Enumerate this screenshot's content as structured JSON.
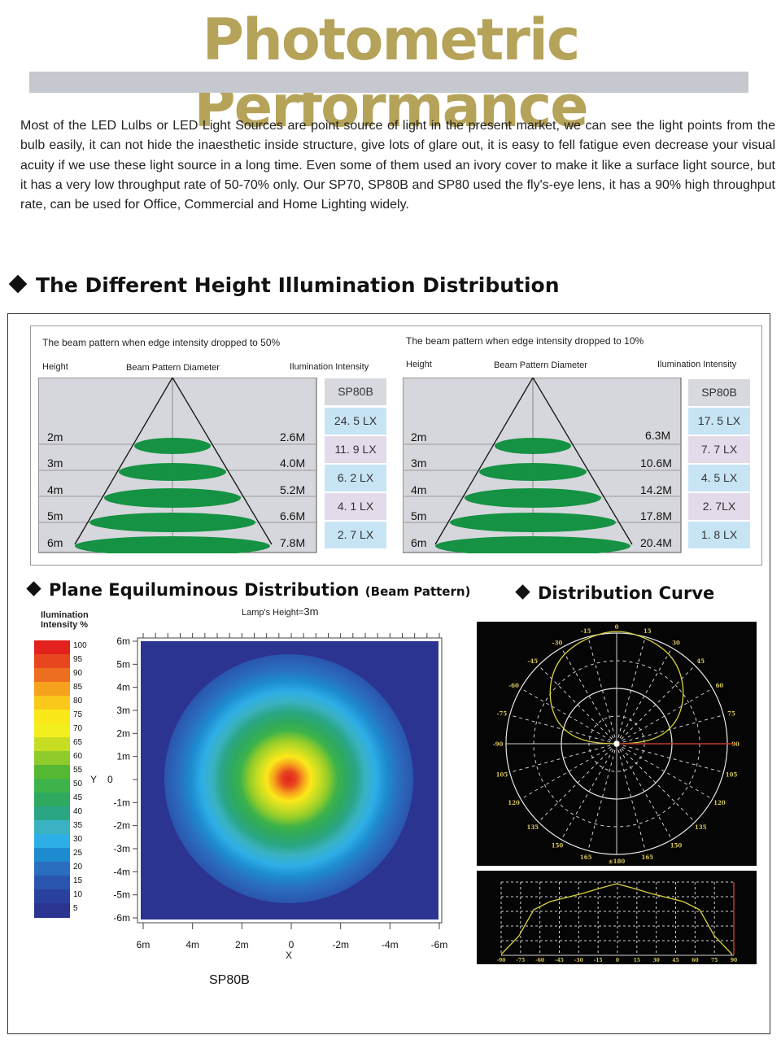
{
  "header": {
    "title": "Photometric Performance",
    "intro": "Most of the LED Lulbs or LED Light Sources are point source of light in the present market, we can see the light points from the bulb easily, it can not hide the inaesthetic inside structure, give lots of glare out, it is easy to fell fatigue even decrease your visual acuity if we use these light source in a long time. Even some of them used an ivory cover to make it like a surface light source, but it has a very low throughput rate of 50-70% only. Our SP70, SP80B and SP80 used the fly's-eye lens, it has a 90% high throughput rate, can be used for Office, Commercial and Home Lighting widely."
  },
  "height_section": {
    "title": "The Different Height Illumination Distribution",
    "col_height": "Height",
    "col_beam": "Beam Pattern Diameter",
    "col_intensity": "Ilumination Intensity",
    "left": {
      "caption": "The beam pattern when edge intensity dropped to 50%",
      "model": "SP80B",
      "rows": [
        {
          "height": "2m",
          "diameter": "2.6M",
          "lux": "24. 5 LX"
        },
        {
          "height": "3m",
          "diameter": "4.0M",
          "lux": "11. 9 LX"
        },
        {
          "height": "4m",
          "diameter": "5.2M",
          "lux": "6. 2 LX"
        },
        {
          "height": "5m",
          "diameter": "6.6M",
          "lux": "4. 1 LX"
        },
        {
          "height": "6m",
          "diameter": "7.8M",
          "lux": "2. 7 LX"
        }
      ]
    },
    "right": {
      "caption": "The beam pattern when edge intensity dropped to 10%",
      "model": "SP80B",
      "rows": [
        {
          "height": "2m",
          "diameter": "6.3M",
          "lux": "17. 5 LX"
        },
        {
          "height": "3m",
          "diameter": "10.6M",
          "lux": "7. 7 LX"
        },
        {
          "height": "4m",
          "diameter": "14.2M",
          "lux": "4. 5 LX"
        },
        {
          "height": "5m",
          "diameter": "17.8M",
          "lux": "2. 7LX"
        },
        {
          "height": "6m",
          "diameter": "20.4M",
          "lux": "1. 8 LX"
        }
      ]
    }
  },
  "plane_section": {
    "title": "Plane Equiluminous Distribution",
    "title_suffix": "(Beam Pattern)",
    "legend_title_1": "Ilumination",
    "legend_title_2": "Intensity",
    "legend_unit": "%",
    "lamp_height_label": "Lamp's Height=",
    "lamp_height_value": "3m",
    "y_axis_label": "Y",
    "x_axis_label": "X",
    "model": "SP80B",
    "legend_values": [
      "100",
      "95",
      "90",
      "85",
      "80",
      "75",
      "70",
      "65",
      "60",
      "55",
      "50",
      "45",
      "40",
      "35",
      "30",
      "25",
      "20",
      "15",
      "10",
      "5"
    ],
    "legend_colors": [
      "#e3211d",
      "#e8461e",
      "#ee6e20",
      "#f6a21c",
      "#f9c81a",
      "#fbe81a",
      "#f3ee1e",
      "#c7dd22",
      "#8fcb2b",
      "#56b933",
      "#3db34a",
      "#2fa95f",
      "#2aa685",
      "#3ab2c3",
      "#2eaee6",
      "#1d8bd0",
      "#2a6fbf",
      "#2a55ae",
      "#2b419f",
      "#2b3491"
    ],
    "y_ticks": [
      "6m",
      "5m",
      "4m",
      "3m",
      "2m",
      "1m",
      "0",
      "-1m",
      "-2m",
      "-3m",
      "-4m",
      "-5m",
      "-6m"
    ],
    "x_ticks": [
      "6m",
      "4m",
      "2m",
      "0",
      "-2m",
      "-4m",
      "-6m"
    ]
  },
  "curve_section": {
    "title": "Distribution Curve",
    "polar_angles": [
      "0",
      "15",
      "30",
      "45",
      "60",
      "75",
      "90",
      "105",
      "120",
      "135",
      "150",
      "165",
      "±180",
      "165",
      "150",
      "135",
      "120",
      "105",
      "-90",
      "-75",
      "-60",
      "-45",
      "-30",
      "-15"
    ],
    "bottom_ticks": [
      "-90",
      "-75",
      "-60",
      "-45",
      "-30",
      "-15",
      "0",
      "15",
      "30",
      "45",
      "60",
      "75",
      "90"
    ]
  }
}
